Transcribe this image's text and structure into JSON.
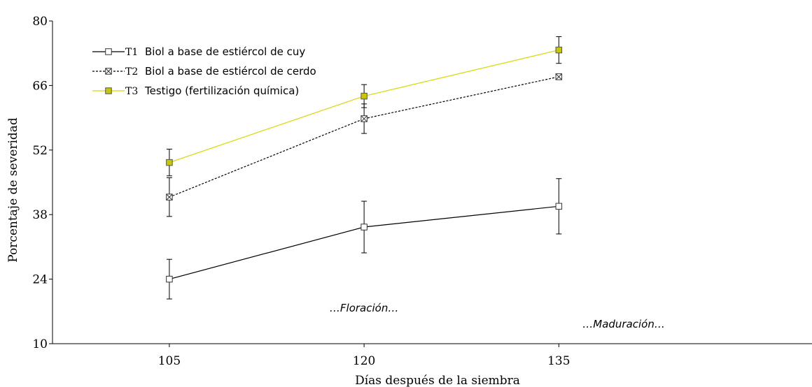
{
  "chart_data": {
    "type": "line",
    "xlabel": "Días después de la siembra",
    "ylabel": "Porcentaje de severidad",
    "ylim": [
      10,
      80
    ],
    "yticks": [
      10,
      24,
      38,
      52,
      66,
      80
    ],
    "x": [
      105,
      120,
      135
    ],
    "xtick_labels": [
      "105",
      "120",
      "135"
    ],
    "grid": false,
    "legend_position": "top-left",
    "series": [
      {
        "code": "T1",
        "name": "Biol a base de estiércol de cuy",
        "values": [
          24.0,
          35.3,
          39.8
        ],
        "error": [
          4.3,
          5.6,
          6.0
        ],
        "color": "#000000",
        "line_style": "solid",
        "marker": "open-square"
      },
      {
        "code": "T2",
        "name": "Biol a base de estiércol de cerdo",
        "values": [
          41.8,
          58.8,
          67.9
        ],
        "error": [
          4.2,
          3.2,
          0.5
        ],
        "color": "#000000",
        "line_style": "dotted",
        "marker": "crossed-square"
      },
      {
        "code": "T3",
        "name": "Testigo (fertilización química)",
        "values": [
          49.3,
          63.7,
          73.7
        ],
        "error": [
          2.9,
          2.5,
          2.9
        ],
        "color": "#d8d800",
        "line_style": "solid",
        "marker": "filled-square"
      }
    ],
    "annotations": [
      {
        "text": "…Floración…",
        "x": 120,
        "y": 17
      },
      {
        "text": "…Maduración…",
        "x": 140,
        "y": 13.5
      }
    ]
  }
}
